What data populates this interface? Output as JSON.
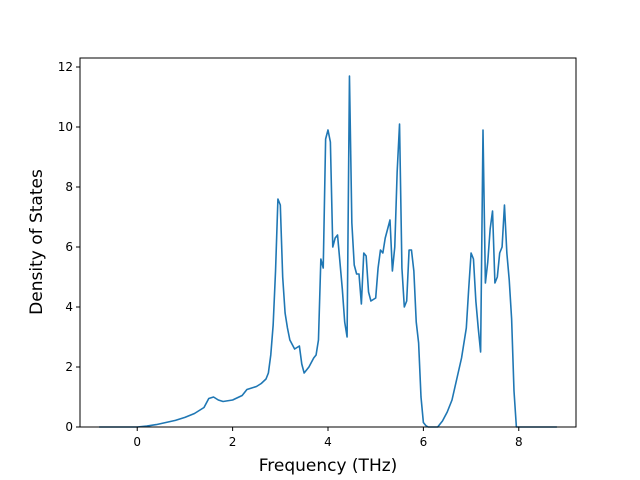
{
  "chart_data": {
    "type": "line",
    "title": "",
    "xlabel": "Frequency (THz)",
    "ylabel": "Density of States",
    "xlim": [
      -1.2,
      9.2
    ],
    "ylim": [
      0,
      12.3
    ],
    "xticks": [
      0,
      2,
      4,
      6,
      8
    ],
    "yticks": [
      0,
      2,
      4,
      6,
      8,
      10,
      12
    ],
    "grid": false,
    "legend": "none",
    "colors": {
      "line": "#1f77b4",
      "axes": "#000000",
      "background": "#ffffff"
    },
    "series": [
      {
        "x": [
          -0.8,
          -0.4,
          0.0,
          0.2,
          0.4,
          0.6,
          0.8,
          1.0,
          1.2,
          1.4,
          1.5,
          1.6,
          1.7,
          1.8,
          2.0,
          2.2,
          2.3,
          2.4,
          2.5,
          2.55,
          2.6,
          2.7,
          2.75,
          2.8,
          2.85,
          2.9,
          2.95,
          3.0,
          3.05,
          3.1,
          3.15,
          3.2,
          3.3,
          3.4,
          3.45,
          3.5,
          3.6,
          3.7,
          3.75,
          3.8,
          3.85,
          3.9,
          3.95,
          4.0,
          4.05,
          4.1,
          4.15,
          4.2,
          4.3,
          4.35,
          4.4,
          4.45,
          4.5,
          4.55,
          4.6,
          4.65,
          4.7,
          4.75,
          4.8,
          4.85,
          4.9,
          5.0,
          5.05,
          5.1,
          5.15,
          5.2,
          5.25,
          5.3,
          5.35,
          5.4,
          5.45,
          5.5,
          5.55,
          5.6,
          5.65,
          5.7,
          5.75,
          5.8,
          5.85,
          5.9,
          5.95,
          6.0,
          6.05,
          6.1,
          6.2,
          6.3,
          6.4,
          6.5,
          6.6,
          6.7,
          6.8,
          6.9,
          6.95,
          7.0,
          7.05,
          7.1,
          7.15,
          7.2,
          7.25,
          7.3,
          7.35,
          7.4,
          7.45,
          7.5,
          7.55,
          7.6,
          7.65,
          7.7,
          7.75,
          7.8,
          7.85,
          7.9,
          7.95,
          8.0,
          8.2,
          8.4,
          8.6,
          8.8
        ],
        "y": [
          0.0,
          0.0,
          0.0,
          0.03,
          0.08,
          0.15,
          0.22,
          0.32,
          0.45,
          0.65,
          0.95,
          1.0,
          0.9,
          0.85,
          0.9,
          1.05,
          1.25,
          1.3,
          1.35,
          1.4,
          1.45,
          1.6,
          1.8,
          2.4,
          3.4,
          5.2,
          7.6,
          7.4,
          5.0,
          3.8,
          3.3,
          2.9,
          2.6,
          2.7,
          2.1,
          1.8,
          2.0,
          2.3,
          2.4,
          2.9,
          5.6,
          5.3,
          9.6,
          9.9,
          9.5,
          6.0,
          6.3,
          6.4,
          4.6,
          3.5,
          3.0,
          11.7,
          6.8,
          5.4,
          5.1,
          5.1,
          4.1,
          5.8,
          5.7,
          4.5,
          4.2,
          4.3,
          5.3,
          5.9,
          5.8,
          6.3,
          6.6,
          6.9,
          5.2,
          6.0,
          8.5,
          10.1,
          5.3,
          4.0,
          4.2,
          5.9,
          5.9,
          5.2,
          3.5,
          2.8,
          1.0,
          0.15,
          0.05,
          0.0,
          0.0,
          0.0,
          0.2,
          0.5,
          0.9,
          1.6,
          2.3,
          3.3,
          4.6,
          5.8,
          5.6,
          4.2,
          3.3,
          2.5,
          9.9,
          4.8,
          5.5,
          6.6,
          7.2,
          4.8,
          5.0,
          5.8,
          6.0,
          7.4,
          5.8,
          4.9,
          3.6,
          1.2,
          0.0,
          0.0,
          0.0,
          0.0,
          0.0,
          0.0
        ]
      }
    ]
  }
}
